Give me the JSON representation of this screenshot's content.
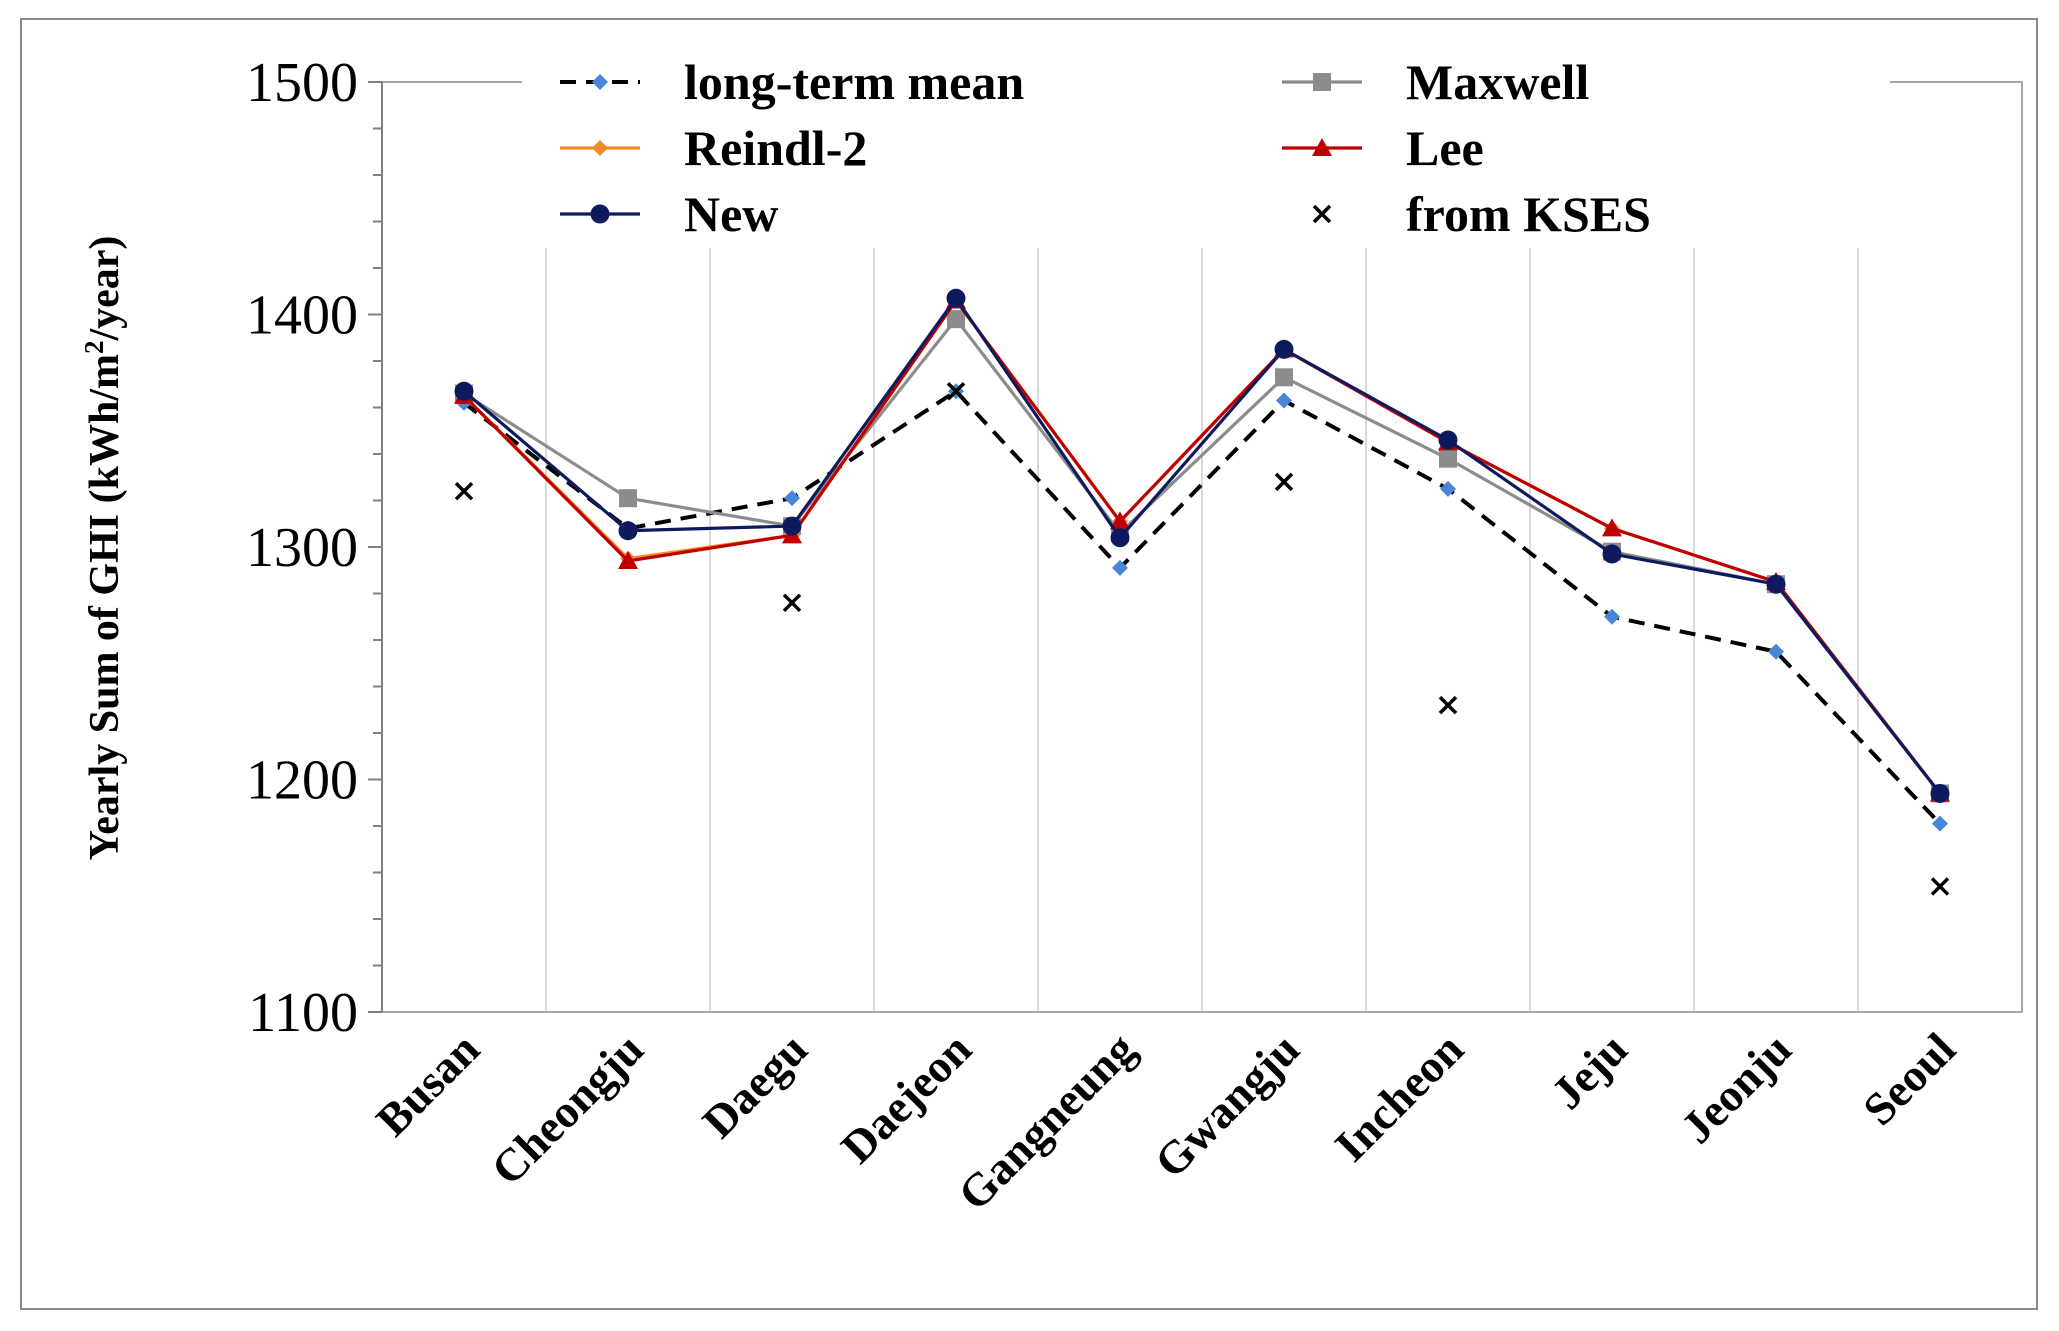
{
  "chart_data": {
    "type": "line",
    "title": "",
    "xlabel": "",
    "ylabel": "Yearly Sum of GHI (kWh/m²/year)",
    "ylabel_main": "Yearly Sum of GHI (kWh/m",
    "ylabel_sup": "2",
    "ylabel_tail": "/year)",
    "ylim": [
      1100,
      1500
    ],
    "yticks": [
      1100,
      1200,
      1300,
      1400,
      1500
    ],
    "ytick_labels": [
      "1100",
      "1200",
      "1300",
      "1400",
      "1500"
    ],
    "categories": [
      "Busan",
      "Cheongju",
      "Daegu",
      "Daejeon",
      "Gangneung",
      "Gwangju",
      "Incheon",
      "Jeju",
      "Jeonju",
      "Seoul"
    ],
    "legend_position": "top",
    "series": [
      {
        "key": "ltm",
        "name": "long-term mean",
        "color": "#000000",
        "marker_color": "#4a86d8",
        "marker": "diamond",
        "dash": true,
        "values": [
          1362,
          1308,
          1321,
          1367,
          1291,
          1363,
          1325,
          1270,
          1255,
          1181
        ]
      },
      {
        "key": "maxwell",
        "name": "Maxwell",
        "color": "#8c8c8c",
        "marker_color": "#8c8c8c",
        "marker": "square",
        "dash": false,
        "values": [
          1366,
          1321,
          1309,
          1398,
          1306,
          1373,
          1338,
          1298,
          1284,
          1194
        ]
      },
      {
        "key": "reindl",
        "name": "Reindl-2",
        "color": "#f28c28",
        "marker_color": "#f28c28",
        "marker": "diamond",
        "dash": false,
        "values": [
          1365,
          1295,
          1305,
          1406,
          1311,
          1385,
          1345,
          1308,
          1285,
          1194
        ]
      },
      {
        "key": "lee",
        "name": "Lee",
        "color": "#c00000",
        "marker_color": "#c00000",
        "marker": "triangle",
        "dash": false,
        "values": [
          1365,
          1294,
          1305,
          1406,
          1311,
          1385,
          1345,
          1308,
          1285,
          1194
        ]
      },
      {
        "key": "new",
        "name": "New",
        "color": "#0d1b5e",
        "marker_color": "#0d1b5e",
        "marker": "circle",
        "dash": false,
        "values": [
          1367,
          1307,
          1309,
          1407,
          1304,
          1385,
          1346,
          1297,
          1284,
          1194
        ]
      },
      {
        "key": "kses",
        "name": "from KSES",
        "color": "#000000",
        "marker_color": "#000000",
        "marker": "x",
        "dash": false,
        "line": false,
        "values": [
          1324,
          null,
          1276,
          1367,
          null,
          1328,
          1232,
          null,
          null,
          1154
        ]
      }
    ]
  }
}
